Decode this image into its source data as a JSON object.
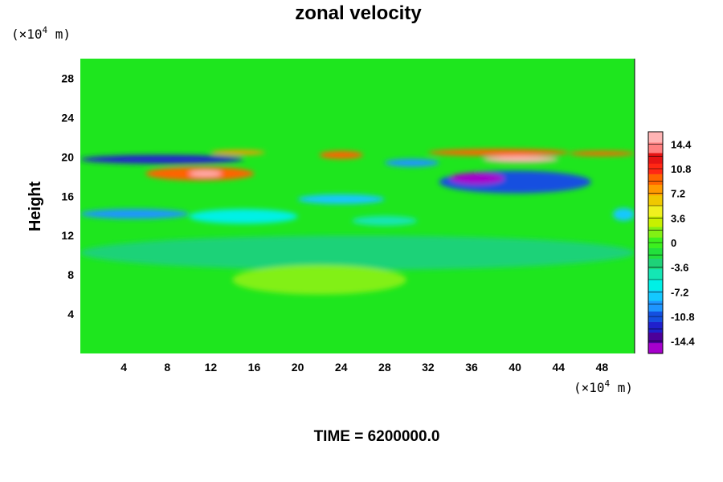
{
  "chart_data": {
    "type": "heatmap",
    "title": "zonal velocity",
    "ylabel": "Height",
    "xlabel": "",
    "x_unit_prefix": "(×10",
    "x_unit_exp": "4",
    "x_unit_suffix": " m)",
    "y_unit_prefix": "(×10",
    "y_unit_exp": "4",
    "y_unit_suffix": " m)",
    "xlim": [
      0,
      51
    ],
    "ylim": [
      0,
      30
    ],
    "x_ticks": [
      4,
      8,
      12,
      16,
      20,
      24,
      28,
      32,
      36,
      40,
      44,
      48
    ],
    "y_ticks": [
      4,
      8,
      12,
      16,
      20,
      24,
      28
    ],
    "colorbar": {
      "range": [
        -16.2,
        16.2
      ],
      "tick_values": [
        14.4,
        10.8,
        7.2,
        3.6,
        0,
        -3.6,
        -7.2,
        -10.8,
        -14.4
      ],
      "tick_labels": [
        "14.4",
        "10.8",
        "7.2",
        "3.6",
        "0",
        "-3.6",
        "-7.2",
        "-10.8",
        "-14.4"
      ],
      "level_step": 1.8
    },
    "field_features": [
      {
        "x": [
          0,
          15
        ],
        "y": [
          19.3,
          20.2
        ],
        "value": -13
      },
      {
        "x": [
          6,
          16
        ],
        "y": [
          17.6,
          19.0
        ],
        "value": 10
      },
      {
        "x": [
          10,
          13
        ],
        "y": [
          18.0,
          18.6
        ],
        "value": 15
      },
      {
        "x": [
          12,
          17
        ],
        "y": [
          20.2,
          20.7
        ],
        "value": 8
      },
      {
        "x": [
          22,
          26
        ],
        "y": [
          19.8,
          20.6
        ],
        "value": 9
      },
      {
        "x": [
          28,
          33
        ],
        "y": [
          19.0,
          19.8
        ],
        "value": -10
      },
      {
        "x": [
          32,
          45
        ],
        "y": [
          20.1,
          20.8
        ],
        "value": 9
      },
      {
        "x": [
          37,
          44
        ],
        "y": [
          19.4,
          20.1
        ],
        "value": 15
      },
      {
        "x": [
          33,
          47
        ],
        "y": [
          16.3,
          18.6
        ],
        "value": -11
      },
      {
        "x": [
          34,
          39
        ],
        "y": [
          17.2,
          18.4
        ],
        "value": -15
      },
      {
        "x": [
          45,
          51
        ],
        "y": [
          20.1,
          20.6
        ],
        "value": 10
      },
      {
        "x": [
          0,
          10
        ],
        "y": [
          13.7,
          14.7
        ],
        "value": -9
      },
      {
        "x": [
          10,
          20
        ],
        "y": [
          13.2,
          14.7
        ],
        "value": -6
      },
      {
        "x": [
          20,
          28
        ],
        "y": [
          15.2,
          16.2
        ],
        "value": -7
      },
      {
        "x": [
          25,
          31
        ],
        "y": [
          13.0,
          14.0
        ],
        "value": -5
      },
      {
        "x": [
          49,
          51
        ],
        "y": [
          13.5,
          14.8
        ],
        "value": -8
      },
      {
        "x": [
          0,
          51
        ],
        "y": [
          8.5,
          12.0
        ],
        "value": -3
      },
      {
        "x": [
          14,
          30
        ],
        "y": [
          6.0,
          9.0
        ],
        "value": 2
      }
    ]
  },
  "footer": {
    "time_label": "TIME = 6200000.0"
  },
  "colors": {
    "background": "#ffffff",
    "plot_green": "#1ee61e",
    "palette": [
      "#a600cc",
      "#4d0099",
      "#2020cc",
      "#1450e0",
      "#1e96ff",
      "#14c8ff",
      "#00f0e6",
      "#14e6b4",
      "#1ed278",
      "#22e03c",
      "#3cf01e",
      "#82f014",
      "#c8f000",
      "#f0f01e",
      "#f0c800",
      "#ff9a00",
      "#ff6400",
      "#ff2814",
      "#e61414",
      "#ff8080",
      "#ffb4b4"
    ]
  }
}
